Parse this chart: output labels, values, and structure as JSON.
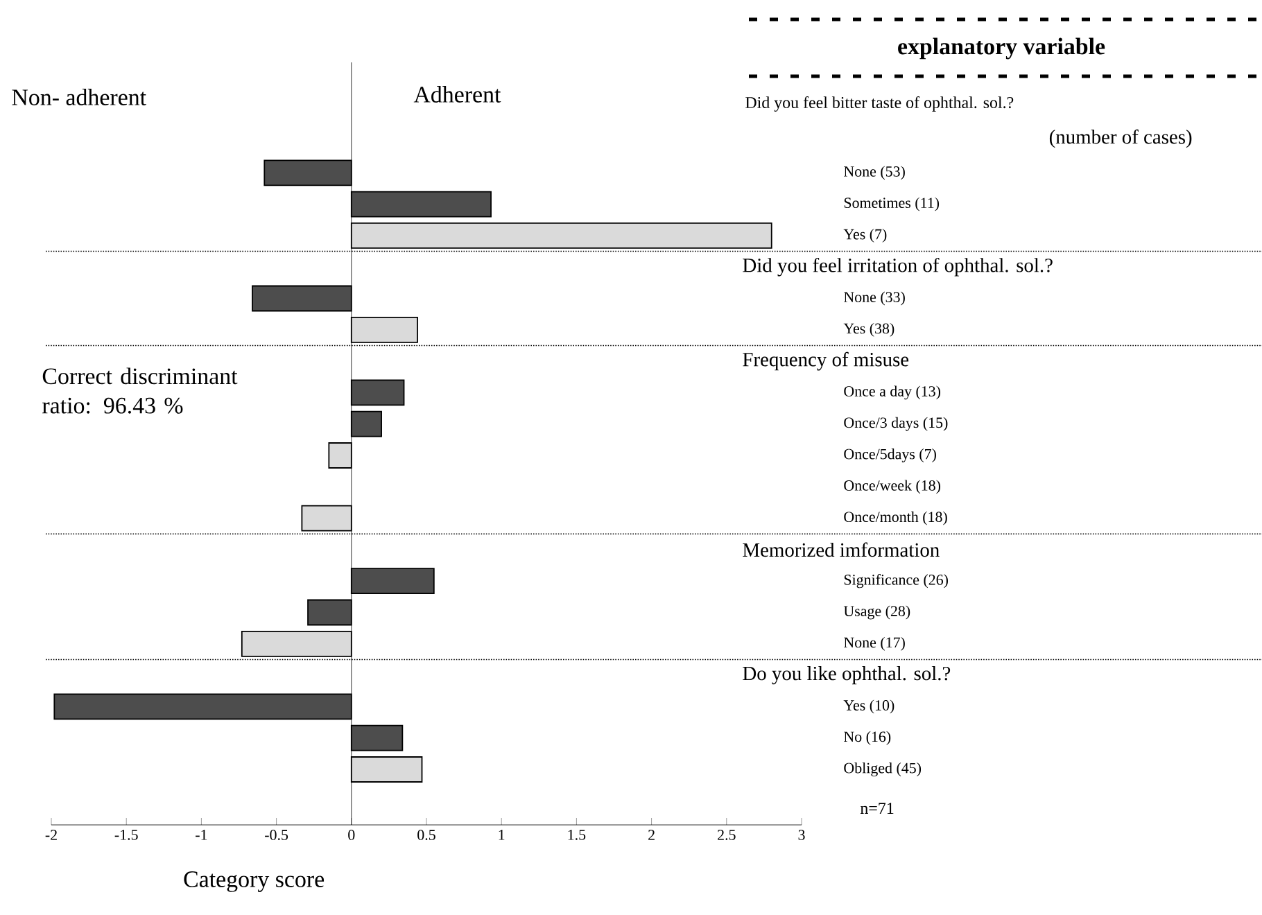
{
  "chart_data": {
    "type": "bar",
    "orientation": "horizontal",
    "xlabel": "Category score",
    "categories": [
      null,
      "None  (53)",
      "Sometimes  (11)",
      "Yes  (7)",
      null,
      "None  (33)",
      "Yes  (38)",
      null,
      "Once a day  (13)",
      "Once/3 days  (15)",
      "Once/5days  (7)",
      "Once/week  (18)",
      "Once/month  (18)",
      null,
      "Significance  (26)",
      "Usage  (28)",
      "None  (17)",
      null,
      "Yes  (10)",
      "No  (16)",
      "Obliged  (45)"
    ],
    "values": [
      null,
      -0.58,
      0.93,
      2.8,
      null,
      -0.66,
      0.44,
      null,
      0.35,
      0.2,
      -0.15,
      null,
      -0.33,
      null,
      0.55,
      -0.29,
      -0.73,
      null,
      -1.98,
      0.34,
      0.47
    ],
    "colors": [
      null,
      "#4d4d4d",
      "#4d4d4d",
      "#dadada",
      null,
      "#4d4d4d",
      "#dadada",
      null,
      "#4d4d4d",
      "#4d4d4d",
      "#dadada",
      null,
      "#dadada",
      null,
      "#4d4d4d",
      "#4d4d4d",
      "#dadada",
      null,
      "#4d4d4d",
      "#4d4d4d",
      "#dadada"
    ],
    "xlim": [
      -2,
      3
    ],
    "xticks": [
      -2,
      -1.5,
      -1,
      -0.5,
      0,
      0.5,
      1,
      1.5,
      2,
      2.5,
      3
    ],
    "annotations": [
      "Did you feel bitter taste of ophthal. sol.?",
      "Did you feel irritation of ophthal. sol.?",
      "Frequency of misuse",
      "Memorized imformation",
      "Do you like ophthal. sol.?",
      "Non- adherent",
      "Adherent",
      "explanatory variable",
      "(number of cases)",
      "Correct discriminant ratio: 96.43 %",
      "n=71"
    ],
    "grid": false
  }
}
